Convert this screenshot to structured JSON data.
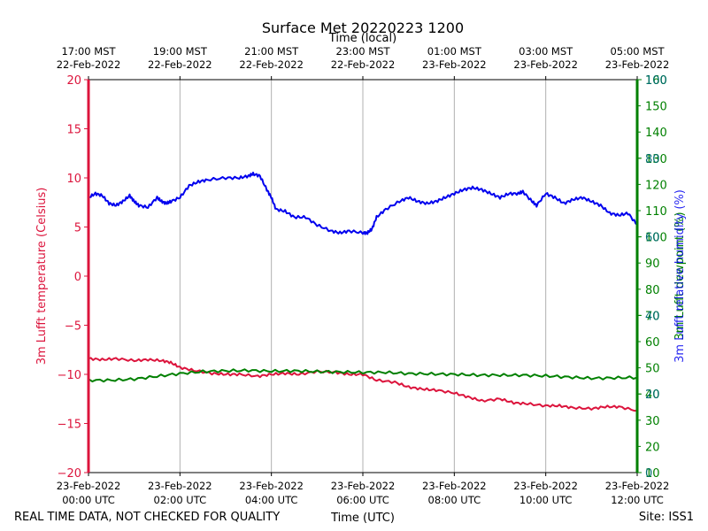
{
  "chart_data": {
    "type": "line",
    "title": "Surface Met 20220223 1200",
    "xlabel_bottom": "Time (UTC)",
    "xlabel_top": "Time (local)",
    "ylabel_left": "3m Lufft temperature (Celsius)",
    "ylabel_right_relative_humidity": "3m Lufft relative humidity (%)",
    "ylabel_right_dewpoint": "3m Lufft dewpoint (%)",
    "footer_left": "REAL TIME DATA, NOT CHECKED FOR QUALITY",
    "footer_right": "Site: ISS1",
    "x_range_hours": [
      0,
      12
    ],
    "ylim_left": [
      -20,
      20
    ],
    "ylim_right": [
      0,
      100
    ],
    "ylim_right_alt": [
      10,
      160
    ],
    "grid": "vertical",
    "bottom_ticks": [
      {
        "hour": 0,
        "line1": "23-Feb-2022",
        "line2": "00:00 UTC"
      },
      {
        "hour": 2,
        "line1": "23-Feb-2022",
        "line2": "02:00 UTC"
      },
      {
        "hour": 4,
        "line1": "23-Feb-2022",
        "line2": "04:00 UTC"
      },
      {
        "hour": 6,
        "line1": "23-Feb-2022",
        "line2": "06:00 UTC"
      },
      {
        "hour": 8,
        "line1": "23-Feb-2022",
        "line2": "08:00 UTC"
      },
      {
        "hour": 10,
        "line1": "23-Feb-2022",
        "line2": "10:00 UTC"
      },
      {
        "hour": 12,
        "line1": "23-Feb-2022",
        "line2": "12:00 UTC"
      }
    ],
    "top_ticks": [
      {
        "hour": 0,
        "line1": "17:00 MST",
        "line2": "22-Feb-2022"
      },
      {
        "hour": 2,
        "line1": "19:00 MST",
        "line2": "22-Feb-2022"
      },
      {
        "hour": 4,
        "line1": "21:00 MST",
        "line2": "22-Feb-2022"
      },
      {
        "hour": 6,
        "line1": "23:00 MST",
        "line2": "22-Feb-2022"
      },
      {
        "hour": 8,
        "line1": "01:00 MST",
        "line2": "23-Feb-2022"
      },
      {
        "hour": 10,
        "line1": "03:00 MST",
        "line2": "23-Feb-2022"
      },
      {
        "hour": 12,
        "line1": "05:00 MST",
        "line2": "23-Feb-2022"
      }
    ],
    "left_ticks": [
      {
        "value": 20,
        "label": "20"
      },
      {
        "value": 15,
        "label": "15"
      },
      {
        "value": 10,
        "label": "10"
      },
      {
        "value": 5,
        "label": "5"
      },
      {
        "value": 0,
        "label": "0"
      },
      {
        "value": -5,
        "label": "−5"
      },
      {
        "value": -10,
        "label": "−10"
      },
      {
        "value": -15,
        "label": "−15"
      },
      {
        "value": -20,
        "label": "−20"
      }
    ],
    "right_ticks": [
      {
        "value": 0,
        "label": "0"
      },
      {
        "value": 20,
        "label": "20"
      },
      {
        "value": 40,
        "label": "40"
      },
      {
        "value": 60,
        "label": "60"
      },
      {
        "value": 80,
        "label": "80"
      },
      {
        "value": 100,
        "label": "100"
      }
    ],
    "right_ticks_alt": [
      {
        "value": 10,
        "label": "10"
      },
      {
        "value": 20,
        "label": "20"
      },
      {
        "value": 30,
        "label": "30"
      },
      {
        "value": 40,
        "label": "40"
      },
      {
        "value": 50,
        "label": "50"
      },
      {
        "value": 60,
        "label": "60"
      },
      {
        "value": 70,
        "label": "70"
      },
      {
        "value": 80,
        "label": "80"
      },
      {
        "value": 90,
        "label": "90"
      },
      {
        "value": 100,
        "label": "100"
      },
      {
        "value": 110,
        "label": "110"
      },
      {
        "value": 120,
        "label": "120"
      },
      {
        "value": 130,
        "label": "130"
      },
      {
        "value": 140,
        "label": "140"
      },
      {
        "value": 150,
        "label": "150"
      },
      {
        "value": 160,
        "label": "160"
      }
    ],
    "series": [
      {
        "name": "3m Lufft temperature",
        "axis": "left",
        "color": "#dc143c",
        "points": [
          [
            0,
            -8.4
          ],
          [
            0.3,
            -8.5
          ],
          [
            0.6,
            -8.4
          ],
          [
            1.0,
            -8.6
          ],
          [
            1.3,
            -8.5
          ],
          [
            1.6,
            -8.6
          ],
          [
            1.8,
            -8.8
          ],
          [
            2.0,
            -9.3
          ],
          [
            2.3,
            -9.6
          ],
          [
            2.7,
            -9.9
          ],
          [
            3.0,
            -10.0
          ],
          [
            3.3,
            -10.0
          ],
          [
            3.7,
            -10.2
          ],
          [
            4.0,
            -10.0
          ],
          [
            4.3,
            -9.9
          ],
          [
            4.6,
            -10.0
          ],
          [
            5.0,
            -9.7
          ],
          [
            5.4,
            -9.8
          ],
          [
            5.7,
            -10.0
          ],
          [
            6.0,
            -10.0
          ],
          [
            6.3,
            -10.6
          ],
          [
            6.7,
            -10.8
          ],
          [
            7.0,
            -11.3
          ],
          [
            7.3,
            -11.5
          ],
          [
            7.6,
            -11.6
          ],
          [
            8.0,
            -11.9
          ],
          [
            8.3,
            -12.3
          ],
          [
            8.6,
            -12.7
          ],
          [
            9.0,
            -12.5
          ],
          [
            9.3,
            -12.9
          ],
          [
            9.6,
            -13.0
          ],
          [
            10.0,
            -13.2
          ],
          [
            10.3,
            -13.2
          ],
          [
            10.6,
            -13.4
          ],
          [
            11.0,
            -13.5
          ],
          [
            11.3,
            -13.3
          ],
          [
            11.6,
            -13.3
          ],
          [
            12.0,
            -13.7
          ]
        ]
      },
      {
        "name": "3m Lufft relative humidity",
        "axis": "right",
        "color": "#0000ee",
        "points": [
          [
            0,
            70
          ],
          [
            0.15,
            71
          ],
          [
            0.3,
            70.5
          ],
          [
            0.45,
            68.5
          ],
          [
            0.6,
            68
          ],
          [
            0.75,
            69
          ],
          [
            0.9,
            70.5
          ],
          [
            1.0,
            69
          ],
          [
            1.1,
            68
          ],
          [
            1.3,
            67.5
          ],
          [
            1.5,
            70
          ],
          [
            1.6,
            69
          ],
          [
            1.7,
            68.5
          ],
          [
            1.8,
            69
          ],
          [
            2.0,
            70
          ],
          [
            2.2,
            73
          ],
          [
            2.4,
            74
          ],
          [
            2.6,
            74.5
          ],
          [
            3.0,
            75
          ],
          [
            3.3,
            75
          ],
          [
            3.5,
            75.5
          ],
          [
            3.6,
            76
          ],
          [
            3.75,
            75.5
          ],
          [
            3.9,
            72
          ],
          [
            4.0,
            70
          ],
          [
            4.1,
            67
          ],
          [
            4.3,
            66.5
          ],
          [
            4.5,
            65
          ],
          [
            4.75,
            65
          ],
          [
            5.0,
            63
          ],
          [
            5.3,
            61.5
          ],
          [
            5.5,
            61
          ],
          [
            5.7,
            61.5
          ],
          [
            6.0,
            61
          ],
          [
            6.1,
            61
          ],
          [
            6.2,
            62
          ],
          [
            6.3,
            65
          ],
          [
            6.5,
            67
          ],
          [
            6.8,
            69
          ],
          [
            7.0,
            70
          ],
          [
            7.2,
            69
          ],
          [
            7.4,
            68.5
          ],
          [
            7.6,
            69
          ],
          [
            7.8,
            70
          ],
          [
            8.0,
            71
          ],
          [
            8.2,
            72
          ],
          [
            8.4,
            72.5
          ],
          [
            8.6,
            72
          ],
          [
            8.8,
            71
          ],
          [
            9.0,
            70
          ],
          [
            9.2,
            71
          ],
          [
            9.4,
            71
          ],
          [
            9.5,
            71.5
          ],
          [
            9.7,
            69
          ],
          [
            9.8,
            68
          ],
          [
            10.0,
            71
          ],
          [
            10.2,
            70
          ],
          [
            10.4,
            68.5
          ],
          [
            10.6,
            69.5
          ],
          [
            10.8,
            70
          ],
          [
            11.0,
            69
          ],
          [
            11.2,
            68
          ],
          [
            11.4,
            66
          ],
          [
            11.6,
            65.5
          ],
          [
            11.8,
            66
          ],
          [
            12.0,
            63
          ]
        ]
      },
      {
        "name": "3m Lufft dewpoint",
        "axis": "right",
        "color": "#008000",
        "points": [
          [
            0,
            23.5
          ],
          [
            0.5,
            23.5
          ],
          [
            1.0,
            23.8
          ],
          [
            1.5,
            24.5
          ],
          [
            2.0,
            25.2
          ],
          [
            2.5,
            25.7
          ],
          [
            3.0,
            25.9
          ],
          [
            3.5,
            26.0
          ],
          [
            4.0,
            25.8
          ],
          [
            4.5,
            25.9
          ],
          [
            5.0,
            25.7
          ],
          [
            5.5,
            25.6
          ],
          [
            6.0,
            25.5
          ],
          [
            6.5,
            25.5
          ],
          [
            7.0,
            25.2
          ],
          [
            7.5,
            25.1
          ],
          [
            8.0,
            25.0
          ],
          [
            8.5,
            24.8
          ],
          [
            9.0,
            24.8
          ],
          [
            9.5,
            24.8
          ],
          [
            10.0,
            24.6
          ],
          [
            10.5,
            24.3
          ],
          [
            11.0,
            24.0
          ],
          [
            11.5,
            24.1
          ],
          [
            12.0,
            24.2
          ]
        ]
      }
    ]
  }
}
